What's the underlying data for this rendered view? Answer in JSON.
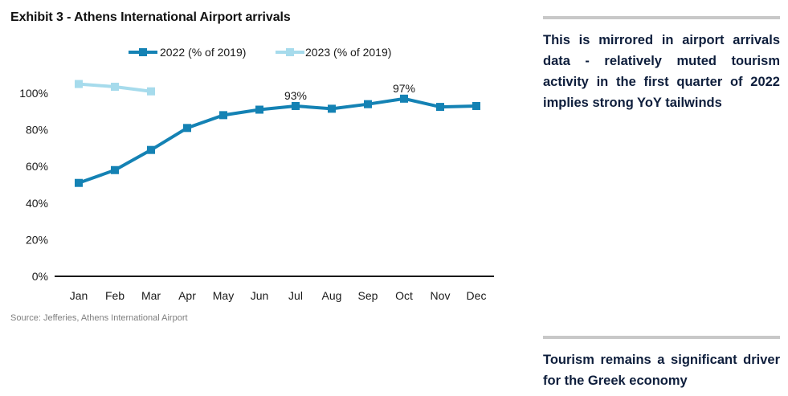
{
  "exhibit": {
    "title": "Exhibit 3 - Athens International Airport arrivals",
    "source": "Source: Jefferies, Athens International Airport"
  },
  "sidebar": {
    "text_1": "This is mirrored in airport arrivals data - relatively muted tourism activity in the first quarter of 2022 implies strong YoY tailwinds",
    "text_2": "Tourism remains a significant driver for the Greek economy"
  },
  "colors": {
    "series_2022": "#1482b4",
    "series_2023": "#a6dbec",
    "axis": "#1a1a1a",
    "rule": "#c8c8c8"
  },
  "chart_data": {
    "type": "line",
    "title": "Exhibit 3 - Athens International Airport arrivals",
    "xlabel": "",
    "ylabel": "",
    "categories": [
      "Jan",
      "Feb",
      "Mar",
      "Apr",
      "May",
      "Jun",
      "Jul",
      "Aug",
      "Sep",
      "Oct",
      "Nov",
      "Dec"
    ],
    "ylim": [
      0,
      100
    ],
    "yticks": [
      0,
      20,
      40,
      60,
      80,
      100
    ],
    "ytick_labels": [
      "0%",
      "20%",
      "40%",
      "60%",
      "80%",
      "100%"
    ],
    "grid": false,
    "legend_position": "top-center",
    "series": [
      {
        "name": "2022 (% of 2019)",
        "values": [
          51,
          58,
          69,
          81,
          88,
          91,
          93,
          91.5,
          94,
          97,
          92.5,
          93
        ]
      },
      {
        "name": "2023 (% of 2019)",
        "values": [
          105,
          103.5,
          101,
          null,
          null,
          null,
          null,
          null,
          null,
          null,
          null,
          null
        ]
      }
    ],
    "annotations": [
      {
        "category": "Jul",
        "text": "93%"
      },
      {
        "category": "Oct",
        "text": "97%"
      }
    ]
  }
}
